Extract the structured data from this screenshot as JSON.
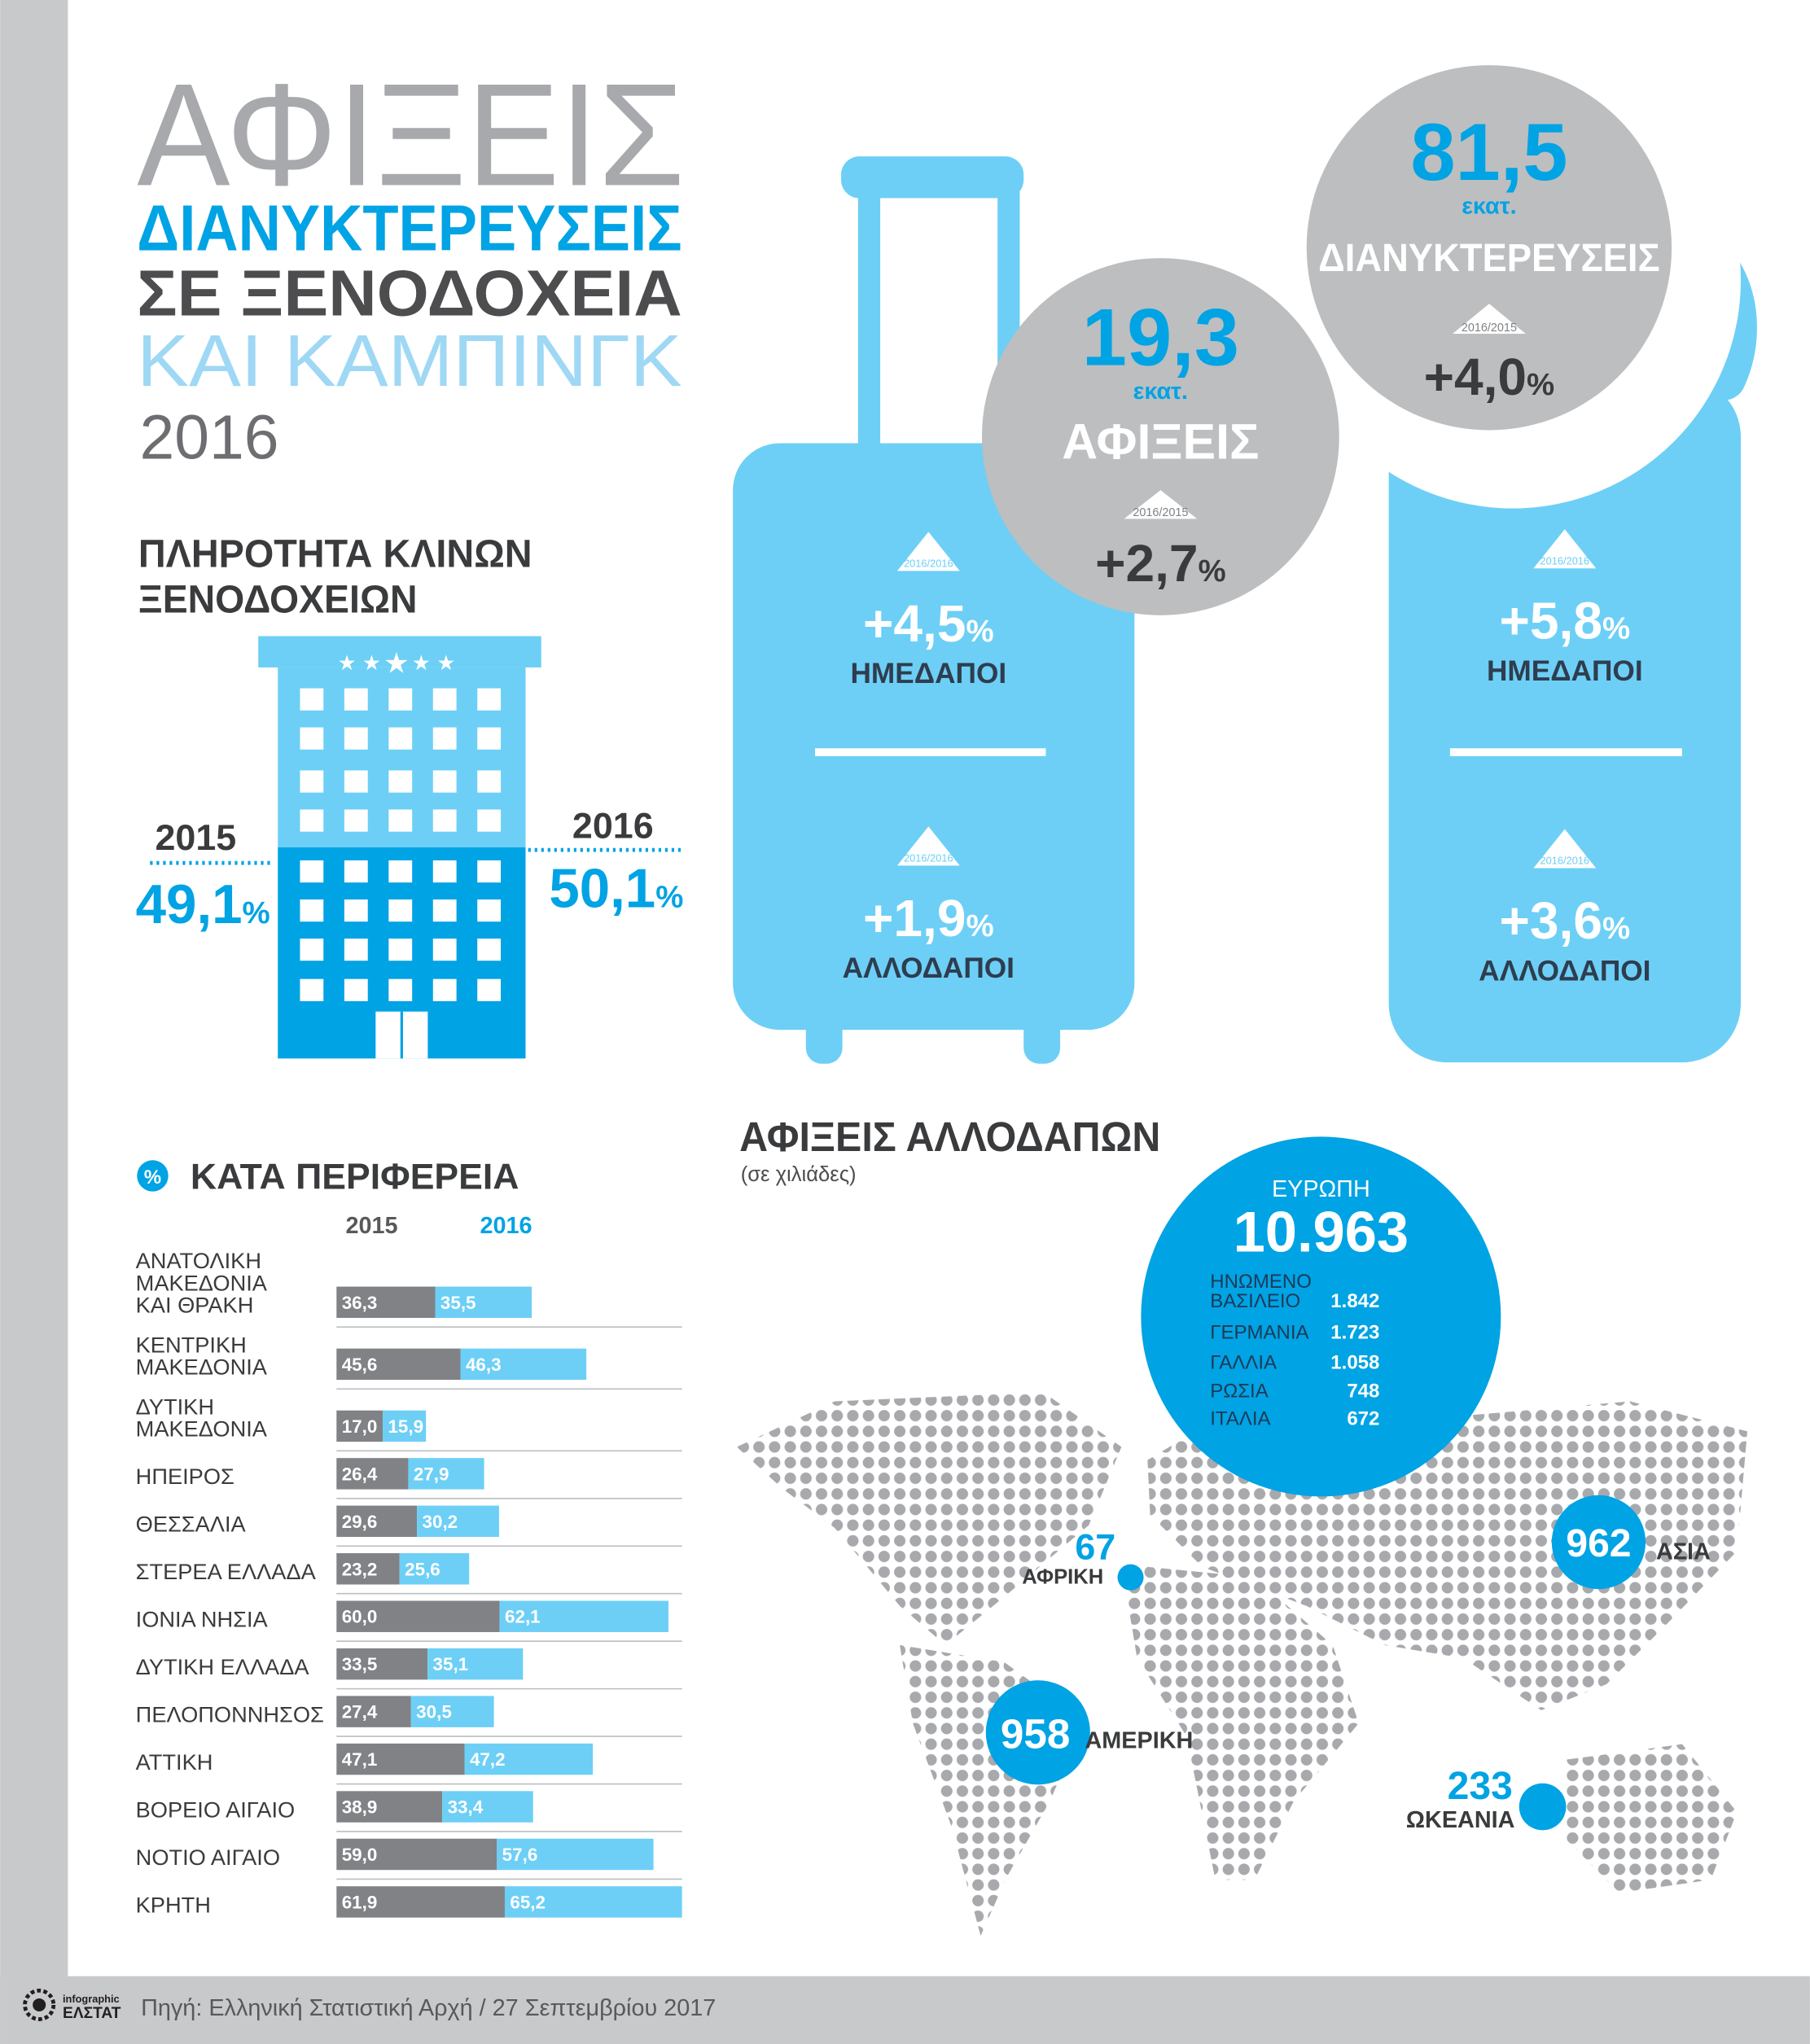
{
  "header": {
    "title": "ΑΦΙΞΕΙΣ",
    "line2": "ΔΙΑΝΥΚΤΕΡΕΥΣΕΙΣ",
    "line3": "ΣΕ ΞΕΝΟΔΟΧΕΙΑ",
    "line4": "ΚΑΙ ΚΑΜΠΙΝΓΚ",
    "year": "2016"
  },
  "occupancy": {
    "title": [
      "ΠΛΗΡΟΤΗΤΑ ΚΛΙΝΩΝ",
      "ΞΕΝΟΔΟΧΕΙΩΝ"
    ],
    "left": {
      "year": "2015",
      "value": "49,1",
      "unit": "%"
    },
    "right": {
      "year": "2016",
      "value": "50,1",
      "unit": "%"
    }
  },
  "arrivals": {
    "value": "19,3",
    "unit": "εκατ.",
    "label": "ΑΦΙΞΕΙΣ",
    "period": "2016/2015",
    "change": "+2,7",
    "change_unit": "%",
    "domestic": {
      "period": "2016/2016",
      "change": "+4,5",
      "unit": "%",
      "label": "ΗΜΕΔΑΠΟΙ"
    },
    "foreign": {
      "period": "2016/2016",
      "change": "+1,9",
      "unit": "%",
      "label": "ΑΛΛΟΔΑΠΟΙ"
    }
  },
  "overnights": {
    "value": "81,5",
    "unit": "εκατ.",
    "label": "ΔΙΑΝΥΚΤΕΡΕΥΣΕΙΣ",
    "period": "2016/2015",
    "change": "+4,0",
    "change_unit": "%",
    "domestic": {
      "period": "2016/2016",
      "change": "+5,8",
      "unit": "%",
      "label": "ΗΜΕΔΑΠΟΙ"
    },
    "foreign": {
      "period": "2016/2016",
      "change": "+3,6",
      "unit": "%",
      "label": "ΑΛΛΟΔΑΠΟΙ"
    }
  },
  "chart_data": {
    "type": "bar",
    "orientation": "horizontal",
    "stacked": true,
    "title": "ΚΑΤΑ ΠΕΡΙΦΕΡΕΙΑ",
    "title_icon": "%",
    "categories": [
      "ΑΝΑΤΟΛΙΚΗ\nΜΑΚΕΔΟΝΙΑ\nΚΑΙ ΘΡΑΚΗ",
      "ΚΕΝΤΡΙΚΗ\nΜΑΚΕΔΟΝΙΑ",
      "ΔΥΤΙΚΗ\nΜΑΚΕΔΟΝΙΑ",
      "ΗΠΕΙΡΟΣ",
      "ΘΕΣΣΑΛΙΑ",
      "ΣΤΕΡΕΑ ΕΛΛΑΔΑ",
      "ΙΟΝΙΑ ΝΗΣΙΑ",
      "ΔΥΤΙΚΗ ΕΛΛΑΔΑ",
      "ΠΕΛΟΠΟΝΝΗΣΟΣ",
      "ΑΤΤΙΚΗ",
      "ΒΟΡΕΙΟ ΑΙΓΑΙΟ",
      "ΝΟΤΙΟ ΑΙΓΑΙΟ",
      "ΚΡΗΤΗ"
    ],
    "series": [
      {
        "name": "2015",
        "color": "#808285",
        "values": [
          36.3,
          45.6,
          17.0,
          26.4,
          29.6,
          23.2,
          60.0,
          33.5,
          27.4,
          47.1,
          38.9,
          59.0,
          61.9
        ],
        "value_labels": [
          "36,3",
          "45,6",
          "17,0",
          "26,4",
          "29,6",
          "23,2",
          "60,0",
          "33,5",
          "27,4",
          "47,1",
          "38,9",
          "59,0",
          "61,9"
        ]
      },
      {
        "name": "2016",
        "color": "#6dcff6",
        "values": [
          35.5,
          46.3,
          15.9,
          27.9,
          30.2,
          25.6,
          62.1,
          35.1,
          30.5,
          47.2,
          33.4,
          57.6,
          65.2
        ],
        "value_labels": [
          "35,5",
          "46,3",
          "15,9",
          "27,9",
          "30,2",
          "25,6",
          "62,1",
          "35,1",
          "30,5",
          "47,2",
          "33,4",
          "57,6",
          "65,2"
        ]
      }
    ]
  },
  "foreign_arrivals": {
    "title": "ΑΦΙΞΕΙΣ ΑΛΛΟΔΑΠΩΝ",
    "subtitle": "(σε χιλιάδες)",
    "europe": {
      "name": "ΕΥΡΩΠΗ",
      "value": "10.963",
      "countries": [
        {
          "name": "ΗΝΩΜΕΝΟ\nΒΑΣΙΛΕΙΟ",
          "value": "1.842"
        },
        {
          "name": "ΓΕΡΜΑΝΙΑ",
          "value": "1.723"
        },
        {
          "name": "ΓΑΛΛΙΑ",
          "value": "1.058"
        },
        {
          "name": "ΡΩΣΙΑ",
          "value": "748"
        },
        {
          "name": "ΙΤΑΛΙΑ",
          "value": "672"
        }
      ]
    },
    "asia": {
      "name": "ΑΣΙΑ",
      "value": "962"
    },
    "africa": {
      "name": "ΑΦΡΙΚΗ",
      "value": "67"
    },
    "america": {
      "name": "ΑΜΕΡΙΚΗ",
      "value": "958"
    },
    "oceania": {
      "name": "ΩΚΕΑΝΙΑ",
      "value": "233"
    }
  },
  "footer": {
    "source": "Πηγή: Ελληνική Στατιστική Αρχή / 27 Σεπτεμβρίου 2017",
    "logo_top": "infographic",
    "logo_bottom": "ΕΛΣΤΑΤ"
  }
}
